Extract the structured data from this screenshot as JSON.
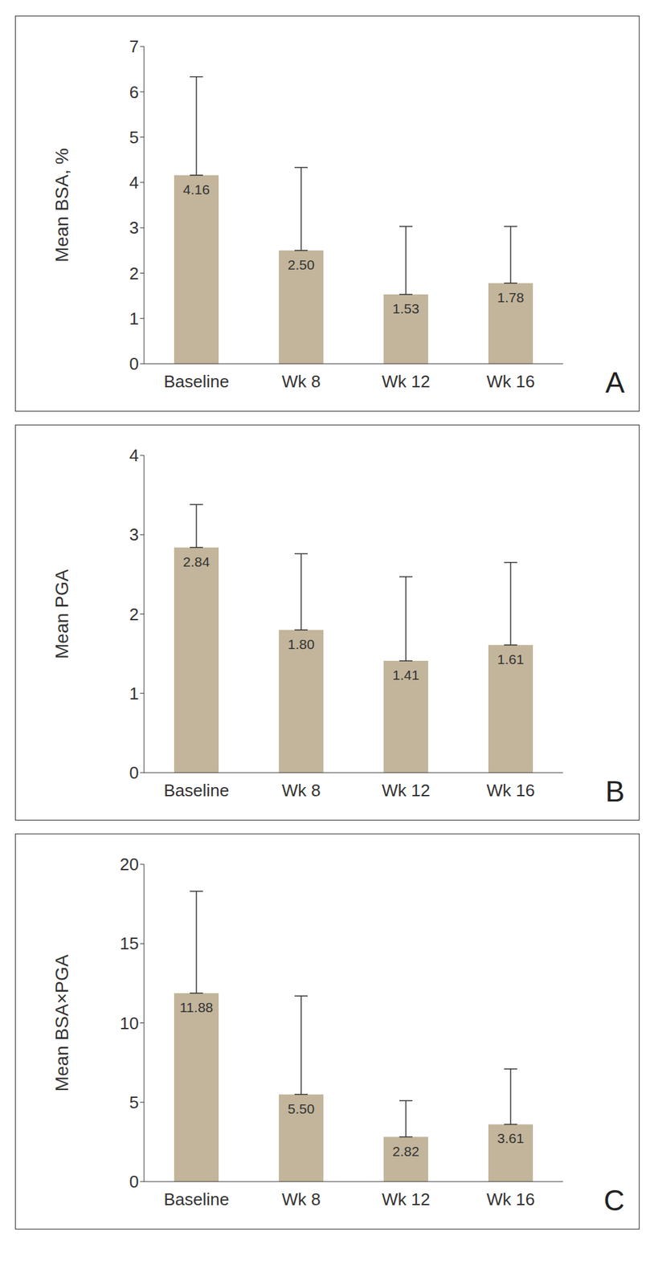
{
  "chart_data": [
    {
      "type": "bar",
      "y_label": "Mean BSA, %",
      "panel_label": "A",
      "categories": [
        "Baseline",
        "Wk 8",
        "Wk 12",
        "Wk 16"
      ],
      "values": [
        4.16,
        2.5,
        1.53,
        1.78
      ],
      "value_labels": [
        "4.16",
        "2.50",
        "1.53",
        "1.78"
      ],
      "error": [
        2.17,
        1.83,
        1.5,
        1.25
      ],
      "color": "#c2b59b",
      "ylim": [
        0,
        7
      ],
      "yticks": [
        0,
        1,
        2,
        3,
        4,
        5,
        6,
        7
      ],
      "data_labels": true
    },
    {
      "type": "bar",
      "y_label": "Mean PGA",
      "panel_label": "B",
      "categories": [
        "Baseline",
        "Wk 8",
        "Wk 12",
        "Wk 16"
      ],
      "values": [
        2.84,
        1.8,
        1.41,
        1.61
      ],
      "value_labels": [
        "2.84",
        "1.80",
        "1.41",
        "1.61"
      ],
      "error": [
        0.54,
        0.96,
        1.06,
        1.04
      ],
      "color": "#c2b59b",
      "ylim": [
        0,
        4
      ],
      "yticks": [
        0,
        1,
        2,
        3,
        4
      ],
      "data_labels": true
    },
    {
      "type": "bar",
      "y_label": "Mean BSA×PGA",
      "panel_label": "C",
      "categories": [
        "Baseline",
        "Wk 8",
        "Wk 12",
        "Wk 16"
      ],
      "values": [
        11.88,
        5.5,
        2.82,
        3.61
      ],
      "value_labels": [
        "11.88",
        "5.50",
        "2.82",
        "3.61"
      ],
      "error": [
        6.42,
        6.2,
        2.28,
        3.49
      ],
      "color": "#c2b59b",
      "ylim": [
        0,
        20
      ],
      "yticks": [
        0,
        5,
        10,
        15,
        20
      ],
      "data_labels": true
    }
  ]
}
